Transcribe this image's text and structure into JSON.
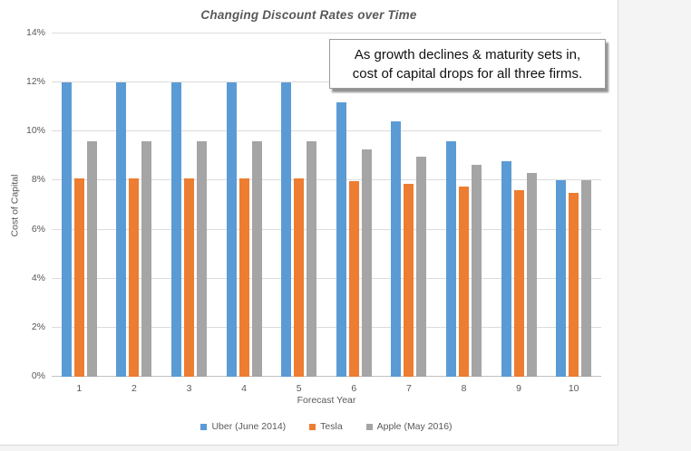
{
  "window": {
    "background": "#f4f4f4",
    "canvas_background": "#ffffff"
  },
  "chart_data": {
    "type": "bar",
    "title": "Changing Discount Rates over Time",
    "xlabel": "Forecast Year",
    "ylabel": "Cost of Capital",
    "categories": [
      "1",
      "2",
      "3",
      "4",
      "5",
      "6",
      "7",
      "8",
      "9",
      "10"
    ],
    "series": [
      {
        "name": "Uber (June 2014)",
        "color": "#5B9BD5",
        "values": [
          12,
          12,
          12,
          12,
          12,
          11.2,
          10.4,
          9.6,
          8.8,
          8
        ]
      },
      {
        "name": "Tesla",
        "color": "#ED7D31",
        "values": [
          8.1,
          8.1,
          8.1,
          8.1,
          8.1,
          7.98,
          7.86,
          7.74,
          7.62,
          7.5
        ]
      },
      {
        "name": "Apple (May 2016)",
        "color": "#A5A5A5",
        "values": [
          9.6,
          9.6,
          9.6,
          9.6,
          9.6,
          9.28,
          8.96,
          8.64,
          8.32,
          8
        ]
      }
    ],
    "ylim": [
      0,
      14
    ],
    "yticks": [
      {
        "value": 0,
        "label": "0%"
      },
      {
        "value": 2,
        "label": "2%"
      },
      {
        "value": 4,
        "label": "4%"
      },
      {
        "value": 6,
        "label": "6%"
      },
      {
        "value": 8,
        "label": "8%"
      },
      {
        "value": 10,
        "label": "10%"
      },
      {
        "value": 12,
        "label": "12%"
      },
      {
        "value": 14,
        "label": "14%"
      }
    ],
    "grid": true,
    "legend_position": "bottom"
  },
  "annotation": {
    "lines": [
      "As growth declines & maturity sets in,",
      "cost of capital drops for all three firms."
    ]
  },
  "colors": {
    "gridline": "#dcdcdc",
    "axis_line": "#c0c0c0",
    "axis_text": "#595959",
    "title_text": "#595959",
    "annotation_border": "#9b9b9b",
    "annotation_text": "#111111"
  }
}
